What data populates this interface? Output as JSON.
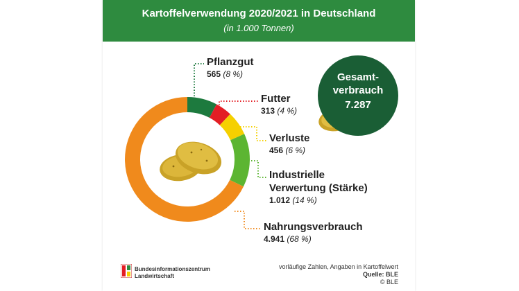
{
  "header": {
    "title": "Kartoffelverwendung 2020/2021 in Deutschland",
    "subtitle": "(in 1.000 Tonnen)"
  },
  "total": {
    "line1": "Gesamt-",
    "line2": "verbrauch",
    "value": "7.287"
  },
  "footer": {
    "logo_line1": "Bundesinformationszentrum",
    "logo_line2": "Landwirtschaft",
    "note": "vorläufige Zahlen, Angaben in Kartoffelwert",
    "source": "Quelle: BLE",
    "copyright": "© BLE"
  },
  "chart_data": {
    "type": "pie",
    "title": "Kartoffelverwendung 2020/2021 in Deutschland",
    "unit": "1.000 Tonnen",
    "total": 7287,
    "slices": [
      {
        "name": "Pflanzgut",
        "value": 565,
        "value_label": "565",
        "percent_label": "(8 %)",
        "color": "#1d7a3e"
      },
      {
        "name": "Futter",
        "value": 313,
        "value_label": "313",
        "percent_label": "(4 %)",
        "color": "#e31e24"
      },
      {
        "name": "Verluste",
        "value": 456,
        "value_label": "456",
        "percent_label": "(6 %)",
        "color": "#f5d000"
      },
      {
        "name_lines": [
          "Industrielle",
          "Verwertung (Stärke)"
        ],
        "name": "Industrielle Verwertung (Stärke)",
        "value": 1012,
        "value_label": "1.012",
        "percent_label": "(14 %)",
        "color": "#5cb532"
      },
      {
        "name": "Nahrungsverbrauch",
        "value": 4941,
        "value_label": "4.941",
        "percent_label": "(68 %)",
        "color": "#f08a1c"
      }
    ]
  }
}
